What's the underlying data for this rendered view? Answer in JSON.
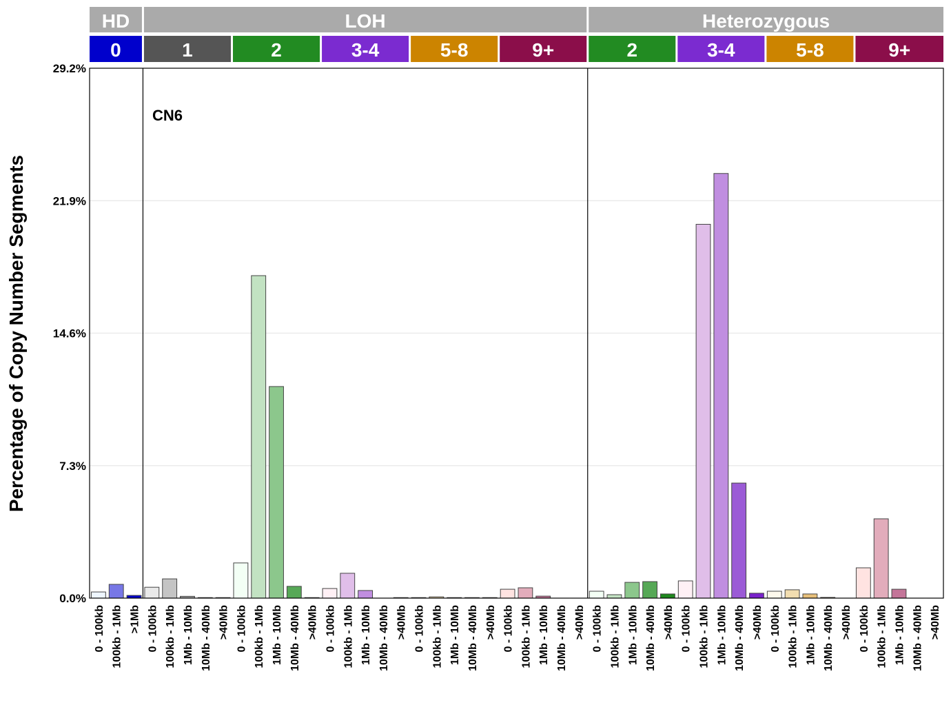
{
  "chart_data": {
    "type": "bar",
    "title": "CN6",
    "ylabel": "Percentage of Copy Number Segments",
    "xlabel": "",
    "ylim": [
      0,
      29.2
    ],
    "yticks": [
      "0.0%",
      "7.3%",
      "14.6%",
      "21.9%",
      "29.2%"
    ],
    "ytick_values": [
      0,
      7.3,
      14.6,
      21.9,
      29.2
    ],
    "grid": true,
    "header_groups": [
      {
        "label": "HD",
        "n": 3
      },
      {
        "label": "LOH",
        "n": 25
      },
      {
        "label": "Heterozygous",
        "n": 20
      }
    ],
    "header_cn": [
      {
        "label": "0",
        "n": 3,
        "color": "#0000cc"
      },
      {
        "label": "1",
        "n": 5,
        "color": "#555555"
      },
      {
        "label": "2",
        "n": 5,
        "color": "#228b22"
      },
      {
        "label": "3-4",
        "n": 5,
        "color": "#7b2bd0"
      },
      {
        "label": "5-8",
        "n": 5,
        "color": "#cc8400"
      },
      {
        "label": "9+",
        "n": 5,
        "color": "#8b0e4a"
      },
      {
        "label": "2",
        "n": 5,
        "color": "#228b22"
      },
      {
        "label": "3-4",
        "n": 5,
        "color": "#7b2bd0"
      },
      {
        "label": "5-8",
        "n": 5,
        "color": "#cc8400"
      },
      {
        "label": "9+",
        "n": 5,
        "color": "#8b0e4a"
      }
    ],
    "categories": [
      "0 - 100kb",
      "100kb - 1Mb",
      ">1Mb",
      "0 - 100kb",
      "100kb - 1Mb",
      "1Mb - 10Mb",
      "10Mb - 40Mb",
      ">40Mb",
      "0 - 100kb",
      "100kb - 1Mb",
      "1Mb - 10Mb",
      "10Mb - 40Mb",
      ">40Mb",
      "0 - 100kb",
      "100kb - 1Mb",
      "1Mb - 10Mb",
      "10Mb - 40Mb",
      ">40Mb",
      "0 - 100kb",
      "100kb - 1Mb",
      "1Mb - 10Mb",
      "10Mb - 40Mb",
      ">40Mb",
      "0 - 100kb",
      "100kb - 1Mb",
      "1Mb - 10Mb",
      "10Mb - 40Mb",
      ">40Mb",
      "0 - 100kb",
      "100kb - 1Mb",
      "1Mb - 10Mb",
      "10Mb - 40Mb",
      ">40Mb",
      "0 - 100kb",
      "100kb - 1Mb",
      "1Mb - 10Mb",
      "10Mb - 40Mb",
      ">40Mb",
      "0 - 100kb",
      "100kb - 1Mb",
      "1Mb - 10Mb",
      "10Mb - 40Mb",
      ">40Mb",
      "0 - 100kb",
      "100kb - 1Mb",
      "1Mb - 10Mb",
      "10Mb - 40Mb",
      ">40Mb"
    ],
    "values": [
      0.34,
      0.76,
      0.15,
      0.6,
      1.06,
      0.1,
      0.03,
      0.03,
      1.94,
      17.77,
      11.66,
      0.65,
      0.03,
      0.53,
      1.37,
      0.42,
      0,
      0.03,
      0.03,
      0.07,
      0.03,
      0.03,
      0.03,
      0.49,
      0.57,
      0.11,
      0,
      0,
      0.38,
      0.19,
      0.87,
      0.91,
      0.23,
      0.95,
      20.6,
      23.4,
      6.34,
      0.27,
      0.38,
      0.46,
      0.23,
      0.04,
      0,
      1.67,
      4.37,
      0.49,
      0,
      0
    ],
    "colors": [
      "#eef6ff",
      "#7777e6",
      "#0000cc",
      "#e9e9e9",
      "#c4c4c4",
      "#a0a0a0",
      "#777777",
      "#444444",
      "#f3fff5",
      "#c2e2c2",
      "#8cc78c",
      "#56a856",
      "#1e881e",
      "#fff0f5",
      "#e0bee9",
      "#c08ee0",
      "#9b5bd6",
      "#7a22cc",
      "#fdf9ec",
      "#f2ddb0",
      "#e8c07a",
      "#d9a040",
      "#cc8400",
      "#ffe3e1",
      "#e2acbb",
      "#c47599",
      "#a84070",
      "#8b0e4a",
      "#f3fff5",
      "#c2e2c2",
      "#8cc78c",
      "#56a856",
      "#1e881e",
      "#fff0f5",
      "#e0bee9",
      "#c08ee0",
      "#9b5bd6",
      "#7a22cc",
      "#fdf9ec",
      "#f2ddb0",
      "#e8c07a",
      "#d9a040",
      "#cc8400",
      "#ffe3e1",
      "#e2acbb",
      "#c47599",
      "#a84070",
      "#8b0e4a"
    ],
    "header_bg": "#aaaaaa"
  }
}
